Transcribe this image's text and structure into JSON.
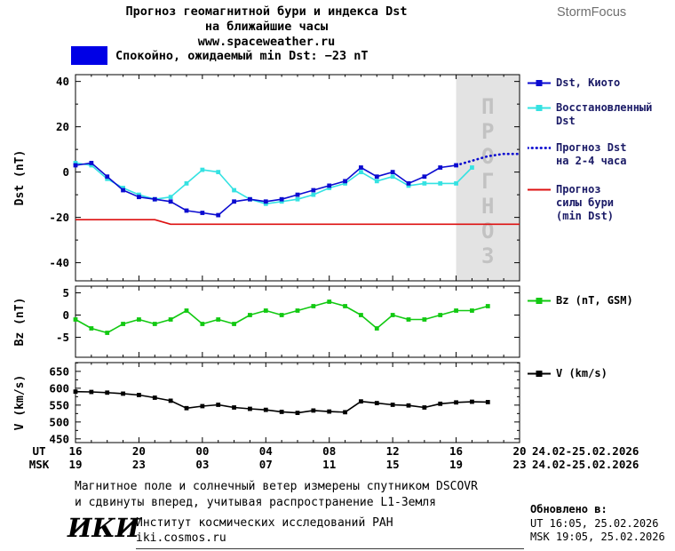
{
  "header": {
    "title_line1": "Прогноз геомагнитной бури и индекса Dst",
    "title_line2": "на ближайшие часы",
    "url": "www.spaceweather.ru",
    "brand": "StormFocus",
    "status_text": "Спокойно, ожидаемый min Dst: −23 nT",
    "status_color": "#0000e6"
  },
  "x_axis": {
    "ticks_hours": [
      0,
      4,
      8,
      12,
      16,
      20,
      24,
      28
    ],
    "ut_labels": [
      "16",
      "20",
      "00",
      "04",
      "08",
      "12",
      "16",
      "20"
    ],
    "msk_labels": [
      "19",
      "23",
      "03",
      "07",
      "11",
      "15",
      "19",
      "23"
    ],
    "ut_row_label": "UT",
    "msk_row_label": "MSK",
    "ut_date": "24.02-25.02.2026",
    "msk_date": "24.02-25.02.2026"
  },
  "chart_data": [
    {
      "type": "line",
      "panel": "dst",
      "ylabel": "Dst (nT)",
      "ylim": [
        -48,
        43
      ],
      "yticks": [
        40,
        20,
        0,
        -20,
        -40
      ],
      "yminor": 10,
      "forecast_region_hours": [
        24,
        28
      ],
      "watermark": "ПРОГНОЗ",
      "series": [
        {
          "key": "dst-kyoto",
          "name": "Dst, Киото",
          "color": "#0b0bd0",
          "style": "solid-square",
          "x0": 0,
          "step": 1,
          "z": 3,
          "values": [
            3,
            4,
            -2,
            -8,
            -11,
            -12,
            -13,
            -17,
            -18,
            -19,
            -13,
            -12,
            -13,
            -12,
            -10,
            -8,
            -6,
            -4,
            2,
            -2,
            0,
            -5,
            -2,
            2,
            3
          ]
        },
        {
          "key": "dst-restored",
          "name": "Восстановленный Dst",
          "color": "#35e2e2",
          "style": "solid-square",
          "x0": 0,
          "step": 1,
          "z": 2,
          "values": [
            4,
            3,
            -3,
            -7,
            -10,
            -12,
            -11,
            -5,
            1,
            0,
            -8,
            -12,
            -14,
            -13,
            -12,
            -10,
            -7,
            -5,
            0,
            -4,
            -2,
            -6,
            -5,
            -5,
            -5,
            2
          ]
        },
        {
          "key": "dst-forecast",
          "name": "Прогноз Dst на 2-4 часа",
          "color": "#0b0bd0",
          "style": "dotted",
          "x0": 24,
          "step": 1,
          "z": 4,
          "values": [
            3,
            5,
            7,
            8,
            8
          ]
        },
        {
          "key": "storm-min",
          "name": "Прогноз силы бури (min Dst)",
          "color": "#dd1111",
          "style": "solid",
          "x0": 0,
          "step": 1,
          "z": 1,
          "values": [
            -21,
            -21,
            -21,
            -21,
            -21,
            -21,
            -23,
            -23,
            -23,
            -23,
            -23,
            -23,
            -23,
            -23,
            -23,
            -23,
            -23,
            -23,
            -23,
            -23,
            -23,
            -23,
            -23,
            -23,
            -23,
            -23,
            -23,
            -23,
            -23
          ]
        }
      ]
    },
    {
      "type": "line",
      "panel": "bz",
      "ylabel": "Bz (nT)",
      "ylim": [
        -9.5,
        6.5
      ],
      "yticks": [
        5,
        0,
        -5
      ],
      "series": [
        {
          "key": "bz",
          "name": "Bz (nT, GSM)",
          "color": "#12c912",
          "style": "solid-square",
          "x0": 0,
          "step": 1,
          "values": [
            -1,
            -3,
            -4,
            -2,
            -1,
            -2,
            -1,
            1,
            -2,
            -1,
            -2,
            0,
            1,
            0,
            1,
            2,
            3,
            2,
            0,
            -3,
            0,
            -1,
            -1,
            0,
            1,
            1,
            2
          ]
        }
      ]
    },
    {
      "type": "line",
      "panel": "v",
      "ylabel": "V (km/s)",
      "ylim": [
        439,
        676
      ],
      "yticks": [
        650,
        600,
        550,
        500,
        450
      ],
      "yminor": 25,
      "series": [
        {
          "key": "v",
          "name": "V (km/s)",
          "color": "#000000",
          "style": "solid-square",
          "x0": 0,
          "step": 1,
          "values": [
            590,
            589,
            587,
            584,
            580,
            572,
            563,
            541,
            547,
            551,
            543,
            539,
            536,
            530,
            527,
            534,
            531,
            529,
            561,
            556,
            551,
            549,
            543,
            554,
            558,
            560,
            559
          ]
        }
      ]
    }
  ],
  "legend": {
    "items": [
      {
        "key": "dst-kyoto",
        "lines": [
          "Dst, Киото"
        ]
      },
      {
        "key": "dst-restored",
        "lines": [
          "Восстановленный",
          "Dst"
        ]
      },
      {
        "key": "dst-forecast",
        "lines": [
          "Прогноз Dst",
          "на 2-4 часа"
        ]
      },
      {
        "key": "storm-min",
        "lines": [
          "Прогноз",
          "силы бури",
          "(min Dst)"
        ]
      },
      {
        "key": "bz",
        "lines": [
          "Bz (nT, GSM)"
        ]
      },
      {
        "key": "v",
        "lines": [
          "V (km/s)"
        ]
      }
    ]
  },
  "footer": {
    "caption_line1": "Магнитное поле и солнечный ветер измерены спутником DSCOVR",
    "caption_line2": "и сдвинуты вперед, учитывая распространение L1-Земля",
    "logo_text": "ИКИ",
    "institute": "Институт космических исследований РАН",
    "site": "iki.cosmos.ru",
    "updated_heading": "Обновлено в:",
    "updated_ut": "UT  16:05, 25.02.2026",
    "updated_msk": "MSK 19:05, 25.02.2026"
  }
}
